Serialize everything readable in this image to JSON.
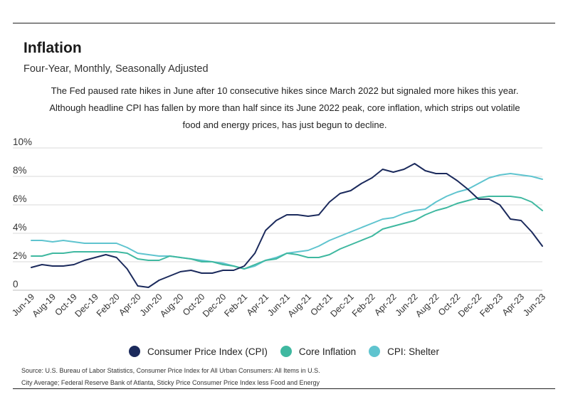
{
  "header": {
    "title": "Inflation",
    "subtitle": "Four-Year, Monthly, Seasonally Adjusted"
  },
  "annotation": {
    "lines": [
      "The Fed paused rate hikes in June after 10 consecutive hikes since March 2022 but signaled more hikes this year.",
      "Although headline CPI has fallen by more than half since its June 2022 peak, core inflation, which strips out volatile",
      "food and energy prices, has just begun to decline."
    ]
  },
  "legend": {
    "items": [
      {
        "label": "Consumer Price Index (CPI)",
        "color": "#1b2a5c"
      },
      {
        "label": "Core Inflation",
        "color": "#3fb8a0"
      },
      {
        "label": "CPI: Shelter",
        "color": "#5fc4cf"
      }
    ]
  },
  "source": {
    "lines": [
      "Source:  U.S. Bureau of Labor Statistics, Consumer Price Index for All Urban Consumers: All Items in U.S.",
      "City Average; Federal Reserve Bank of Atlanta, Sticky Price Consumer Price Index less Food and Energy"
    ]
  },
  "chart_data": {
    "type": "line",
    "title": "Inflation",
    "subtitle": "Four-Year, Monthly, Seasonally Adjusted",
    "ylim": [
      0,
      10
    ],
    "y_ticks": [
      "0",
      "2%",
      "4%",
      "6%",
      "8%",
      "10%"
    ],
    "y_tick_values": [
      0,
      2,
      4,
      6,
      8,
      10
    ],
    "grid": true,
    "legend_position": "bottom",
    "x": [
      "Jun-19",
      "Jul-19",
      "Aug-19",
      "Sep-19",
      "Oct-19",
      "Nov-19",
      "Dec-19",
      "Jan-20",
      "Feb-20",
      "Mar-20",
      "Apr-20",
      "May-20",
      "Jun-20",
      "Jul-20",
      "Aug-20",
      "Sep-20",
      "Oct-20",
      "Nov-20",
      "Dec-20",
      "Jan-21",
      "Feb-21",
      "Mar-21",
      "Apr-21",
      "May-21",
      "Jun-21",
      "Jul-21",
      "Aug-21",
      "Sep-21",
      "Oct-21",
      "Nov-21",
      "Dec-21",
      "Jan-22",
      "Feb-22",
      "Mar-22",
      "Apr-22",
      "May-22",
      "Jun-22",
      "Jul-22",
      "Aug-22",
      "Sep-22",
      "Oct-22",
      "Nov-22",
      "Dec-22",
      "Jan-23",
      "Feb-23",
      "Mar-23",
      "Apr-23",
      "May-23",
      "Jun-23"
    ],
    "x_tick_labels": [
      "Jun-19",
      "Aug-19",
      "Oct-19",
      "Dec-19",
      "Feb-20",
      "Apr-20",
      "Jun-20",
      "Aug-20",
      "Oct-20",
      "Dec-20",
      "Feb-21",
      "Apr-21",
      "Jun-21",
      "Aug-21",
      "Oct-21",
      "Dec-21",
      "Feb-22",
      "Apr-22",
      "Jun-22",
      "Aug-22",
      "Oct-22",
      "Dec-22",
      "Feb-23",
      "Apr-23",
      "Jun-23"
    ],
    "series": [
      {
        "name": "Consumer Price Index (CPI)",
        "color": "#1b2a5c",
        "values": [
          1.6,
          1.8,
          1.7,
          1.7,
          1.8,
          2.1,
          2.3,
          2.5,
          2.3,
          1.5,
          0.3,
          0.2,
          0.7,
          1.0,
          1.3,
          1.4,
          1.2,
          1.2,
          1.4,
          1.4,
          1.7,
          2.6,
          4.2,
          4.9,
          5.3,
          5.3,
          5.2,
          5.3,
          6.2,
          6.8,
          7.0,
          7.5,
          7.9,
          8.5,
          8.3,
          8.5,
          8.9,
          8.4,
          8.2,
          8.2,
          7.7,
          7.1,
          6.4,
          6.4,
          6.0,
          5.0,
          4.9,
          4.1,
          3.1
        ]
      },
      {
        "name": "Core Inflation",
        "color": "#3fb8a0",
        "values": [
          2.4,
          2.4,
          2.6,
          2.6,
          2.7,
          2.7,
          2.7,
          2.7,
          2.7,
          2.6,
          2.2,
          2.1,
          2.1,
          2.4,
          2.3,
          2.2,
          2.0,
          2.0,
          1.8,
          1.7,
          1.5,
          1.8,
          2.1,
          2.2,
          2.6,
          2.5,
          2.3,
          2.3,
          2.5,
          2.9,
          3.2,
          3.5,
          3.8,
          4.3,
          4.5,
          4.7,
          4.9,
          5.3,
          5.6,
          5.8,
          6.1,
          6.3,
          6.5,
          6.6,
          6.6,
          6.6,
          6.5,
          6.2,
          5.6
        ]
      },
      {
        "name": "CPI: Shelter",
        "color": "#5fc4cf",
        "values": [
          3.5,
          3.5,
          3.4,
          3.5,
          3.4,
          3.3,
          3.3,
          3.3,
          3.3,
          3.0,
          2.6,
          2.5,
          2.4,
          2.4,
          2.3,
          2.2,
          2.1,
          2.0,
          1.9,
          1.7,
          1.5,
          1.7,
          2.1,
          2.3,
          2.6,
          2.7,
          2.8,
          3.1,
          3.5,
          3.8,
          4.1,
          4.4,
          4.7,
          5.0,
          5.1,
          5.4,
          5.6,
          5.7,
          6.2,
          6.6,
          6.9,
          7.1,
          7.5,
          7.9,
          8.1,
          8.2,
          8.1,
          8.0,
          7.8
        ]
      }
    ]
  }
}
